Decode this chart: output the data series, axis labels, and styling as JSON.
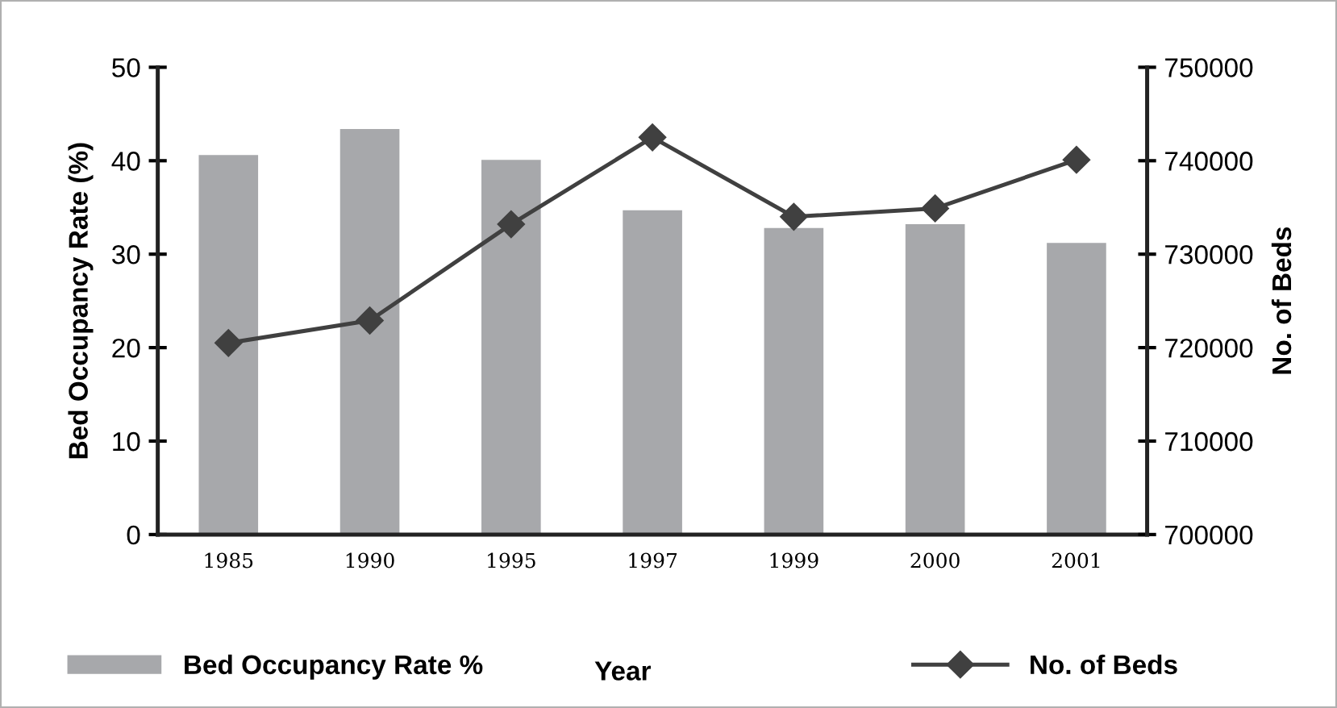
{
  "chart_data": {
    "type": "bar",
    "categories": [
      "1985",
      "1990",
      "1995",
      "1997",
      "1999",
      "2000",
      "2001"
    ],
    "xlabel": "Year",
    "ylabel": "Bed Occupancy Rate (%)",
    "y2label": "No. of Beds",
    "series": [
      {
        "name": "Bed Occupancy Rate %",
        "color": "#a7a8ab",
        "values": [
          40.6,
          43.4,
          40.1,
          34.7,
          32.8,
          33.2,
          31.2
        ]
      },
      {
        "name": "No. of Beds",
        "type": "line",
        "axis": "y2",
        "color": "#404040",
        "marker": "diamond",
        "values": [
          720500,
          722900,
          733200,
          742500,
          734000,
          734900,
          740100
        ]
      }
    ],
    "ylim": [
      0,
      50
    ],
    "yticks": [
      0,
      10,
      20,
      30,
      40,
      50
    ],
    "y2lim": [
      700000,
      750000
    ],
    "y2ticks": [
      700000,
      710000,
      720000,
      730000,
      740000,
      750000
    ],
    "legend": "bottom",
    "grid": false
  }
}
